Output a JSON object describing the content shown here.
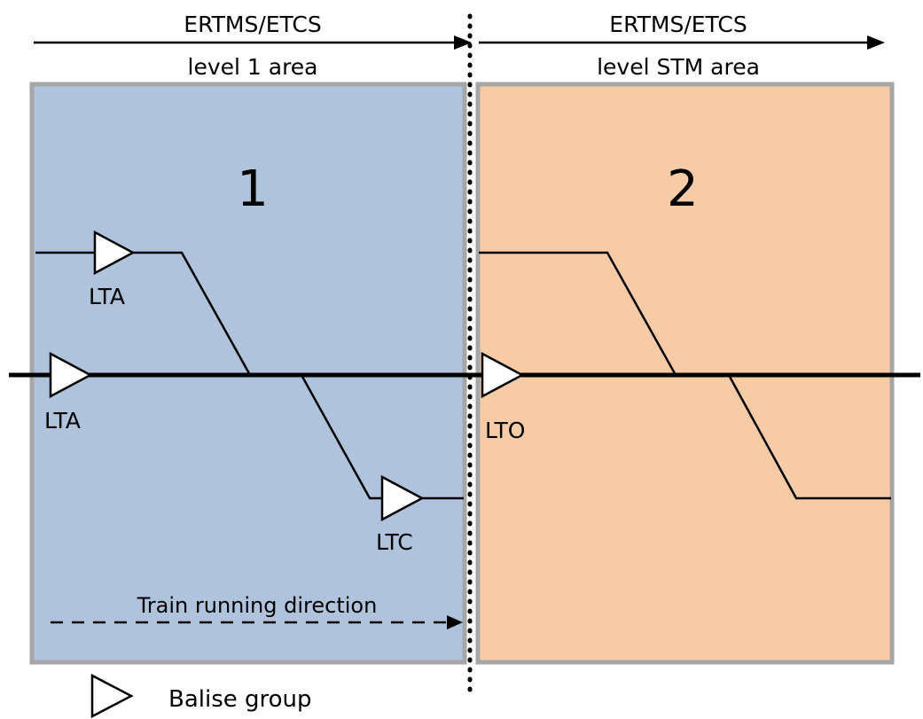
{
  "header": {
    "left_top": "ERTMS/ETCS",
    "left_bottom": "level 1 area",
    "right_top": "ERTMS/ETCS",
    "right_bottom": "level STM area"
  },
  "areas": [
    {
      "number": "1",
      "fill": "#b0c3dc"
    },
    {
      "number": "2",
      "fill": "#f8cba7"
    }
  ],
  "area_border_color": "#a6a6a6",
  "balises": {
    "upper_left": "LTA",
    "main_left": "LTA",
    "lower_right": "LTC",
    "transition": "LTO"
  },
  "direction_label": "Train running direction",
  "legend": {
    "icon": "balise-group-triangle-icon",
    "label": "Balise group"
  }
}
